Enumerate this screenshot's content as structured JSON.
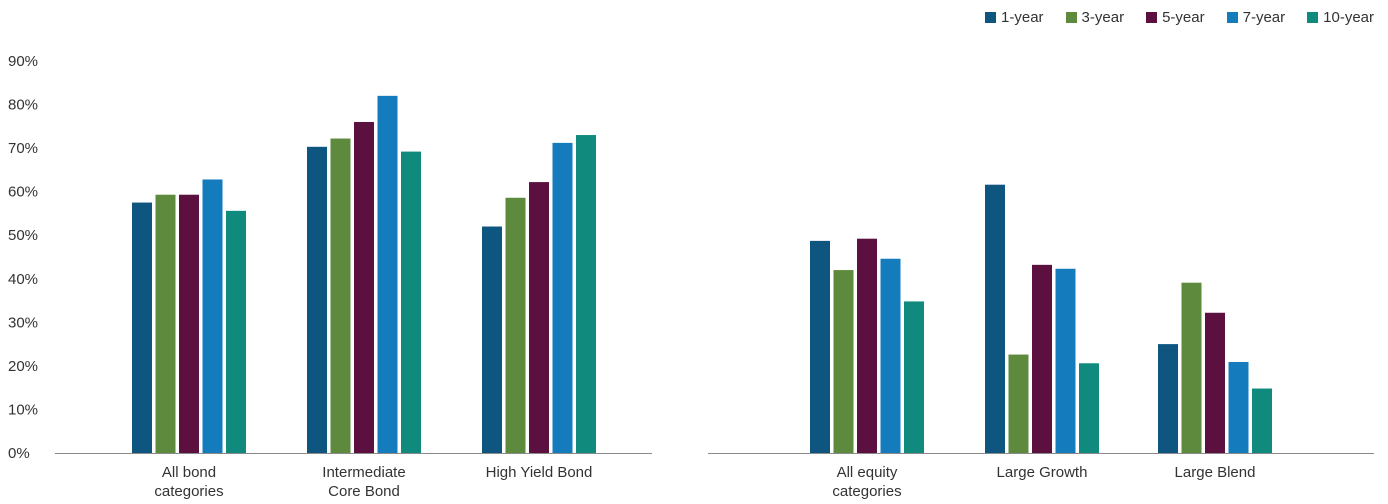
{
  "legend": {
    "items": [
      {
        "label": "1-year",
        "color": "#0e5580"
      },
      {
        "label": "3-year",
        "color": "#5d8a3c"
      },
      {
        "label": "5-year",
        "color": "#5c1040"
      },
      {
        "label": "7-year",
        "color": "#147cbd"
      },
      {
        "label": "10-year",
        "color": "#0f8a7c"
      }
    ]
  },
  "chart_data": [
    {
      "type": "bar",
      "categories": [
        [
          "All bond",
          "categories"
        ],
        [
          "Intermediate",
          "Core Bond"
        ],
        [
          "High Yield Bond"
        ]
      ],
      "series": [
        {
          "name": "1-year",
          "values": [
            57.5,
            70.3,
            52.0
          ]
        },
        {
          "name": "3-year",
          "values": [
            59.3,
            72.2,
            58.6
          ]
        },
        {
          "name": "5-year",
          "values": [
            59.3,
            76.0,
            62.2
          ]
        },
        {
          "name": "7-year",
          "values": [
            62.8,
            82.0,
            71.2
          ]
        },
        {
          "name": "10-year",
          "values": [
            55.6,
            69.2,
            73.0
          ]
        }
      ],
      "ylim": [
        0,
        90
      ],
      "yticks": [
        "0%",
        "10%",
        "20%",
        "30%",
        "40%",
        "50%",
        "60%",
        "70%",
        "80%",
        "90%"
      ],
      "grid": false
    },
    {
      "type": "bar",
      "categories": [
        [
          "All equity",
          "categories"
        ],
        [
          "Large Growth"
        ],
        [
          "Large Blend"
        ]
      ],
      "series": [
        {
          "name": "1-year",
          "values": [
            48.7,
            61.6,
            25.0
          ]
        },
        {
          "name": "3-year",
          "values": [
            42.0,
            22.6,
            39.1
          ]
        },
        {
          "name": "5-year",
          "values": [
            49.2,
            43.2,
            32.2
          ]
        },
        {
          "name": "7-year",
          "values": [
            44.6,
            42.3,
            20.9
          ]
        },
        {
          "name": "10-year",
          "values": [
            34.8,
            20.6,
            14.8
          ]
        }
      ],
      "ylim": [
        0,
        90
      ],
      "grid": false
    }
  ]
}
